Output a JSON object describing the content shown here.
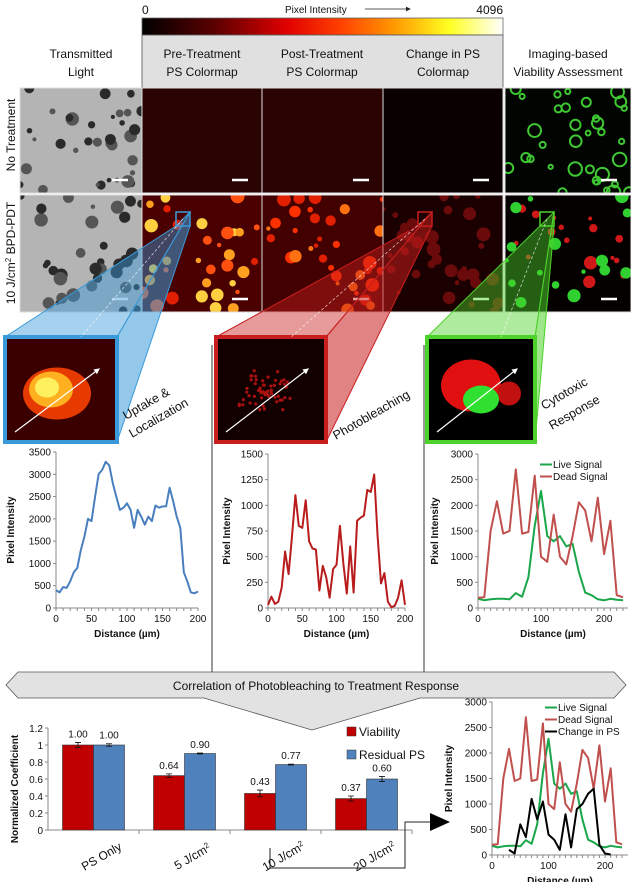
{
  "colorbar": {
    "min_label": "0",
    "max_label": "4096",
    "title": "Pixel Intensity",
    "colors": [
      "#000000",
      "#5a0000",
      "#e00000",
      "#ff4000",
      "#ff9900",
      "#ffff20",
      "#ffffff"
    ]
  },
  "columns": {
    "transmitted": [
      "Transmitted",
      "Light"
    ],
    "pre": [
      "Pre-Treatment",
      "PS Colormap"
    ],
    "post": [
      "Post-Treatment",
      "PS Colormap"
    ],
    "change": [
      "Change in PS",
      "Colormap"
    ],
    "viability": [
      "Imaging-based",
      "Viability Assessment"
    ]
  },
  "rows": {
    "no_treatment": "No Treatment",
    "treated_prefix": "10 J/cm",
    "treated_sup": "2",
    "treated_suffix": " BPD-PDT"
  },
  "insets": {
    "uptake": [
      "Uptake &",
      "Localization"
    ],
    "photobleaching": "Photobleaching",
    "cytotoxic": [
      "Cytotoxic",
      "Response"
    ],
    "colors": {
      "uptake": "#3a9ad9",
      "photobleaching": "#c81e1e",
      "cytotoxic": "#4cd22a"
    }
  },
  "banner": "Correlation of Photobleaching to Treatment Response",
  "chart_data": [
    {
      "type": "line",
      "xlabel": "Distance (µm)",
      "ylabel": "Pixel Intensity",
      "xlim": [
        0,
        200
      ],
      "ylim": [
        0,
        3500
      ],
      "xticks": [
        "0",
        "50",
        "100",
        "150",
        "200"
      ],
      "yticks": [
        "0",
        "500",
        "1000",
        "1500",
        "2000",
        "2500",
        "3000",
        "3500"
      ],
      "series": [
        {
          "color": "#4a7fbf",
          "x_step": 5,
          "values": [
            400,
            350,
            470,
            450,
            600,
            800,
            900,
            1300,
            1600,
            2000,
            1950,
            2500,
            3000,
            3100,
            3280,
            3200,
            2800,
            2500,
            2200,
            2250,
            2350,
            2200,
            1800,
            2200,
            2050,
            1870,
            2050,
            1950,
            2300,
            2250,
            2280,
            2280,
            2700,
            2400,
            2050,
            1800,
            800,
            600,
            350,
            330,
            370
          ]
        }
      ]
    },
    {
      "type": "line",
      "xlabel": "Distance (µm)",
      "ylabel": "Pixel Intensity",
      "xlim": [
        0,
        200
      ],
      "ylim": [
        0,
        1500
      ],
      "xticks": [
        "0",
        "50",
        "100",
        "150",
        "200"
      ],
      "yticks": [
        "0",
        "250",
        "500",
        "750",
        "1000",
        "1250",
        "1500"
      ],
      "series": [
        {
          "color": "#b81c1c",
          "x_step": 5,
          "values": [
            30,
            110,
            40,
            60,
            200,
            550,
            330,
            700,
            1100,
            800,
            780,
            1050,
            650,
            580,
            570,
            170,
            410,
            300,
            100,
            380,
            420,
            800,
            430,
            140,
            600,
            150,
            850,
            880,
            900,
            1150,
            1130,
            1300,
            700,
            240,
            340,
            60,
            10,
            20,
            100,
            270,
            30
          ]
        }
      ]
    },
    {
      "type": "line",
      "xlabel": "Distance (µm)",
      "ylabel": "Pixel Intensity",
      "xlim": [
        0,
        230
      ],
      "ylim": [
        0,
        3000
      ],
      "xticks": [
        "0",
        "100",
        "200"
      ],
      "yticks": [
        "0",
        "500",
        "1000",
        "1500",
        "2000",
        "2500",
        "3000"
      ],
      "legend": "top-right",
      "series": [
        {
          "name": "Live Signal",
          "color": "#1aa64a",
          "x_step": 10,
          "values": [
            180,
            150,
            170,
            180,
            180,
            170,
            290,
            220,
            600,
            1600,
            2280,
            1400,
            1300,
            1400,
            1200,
            1250,
            700,
            300,
            250,
            170,
            150,
            180,
            160,
            150
          ]
        },
        {
          "name": "Dead Signal",
          "color": "#c0504d",
          "x_step": 10,
          "values": [
            200,
            210,
            1500,
            2080,
            1450,
            1500,
            2700,
            1450,
            1480,
            2580,
            1000,
            900,
            1820,
            1000,
            850,
            1400,
            2060,
            1900,
            1300,
            2150,
            1050,
            1700,
            250,
            210
          ]
        }
      ]
    },
    {
      "type": "bar",
      "ylabel": "Normalized Coefficient",
      "ylim": [
        0,
        1.2
      ],
      "yticks": [
        "0",
        "0.2",
        "0.4",
        "0.6",
        "0.8",
        "1",
        "1.2"
      ],
      "categories": [
        "PS Only",
        "5 J/cm",
        "10 J/cm",
        "20 J/cm"
      ],
      "category_sup": [
        "",
        "2",
        "2",
        "2"
      ],
      "legend": "top-right",
      "series": [
        {
          "name": "Viability",
          "color": "#c00000",
          "values": [
            1.0,
            0.64,
            0.43,
            0.37
          ],
          "labels": [
            "1.00",
            "0.64",
            "0.43",
            "0.37"
          ],
          "errors": [
            0.03,
            0.02,
            0.04,
            0.03
          ]
        },
        {
          "name": "Residual PS",
          "color": "#4f81bd",
          "values": [
            1.0,
            0.9,
            0.77,
            0.6
          ],
          "labels": [
            "1.00",
            "0.90",
            "0.77",
            "0.60"
          ],
          "errors": [
            0.015,
            0.005,
            0.005,
            0.03
          ]
        }
      ]
    },
    {
      "type": "line",
      "xlabel": "Distance (µm)",
      "ylabel": "Pixel Intensity",
      "xlim": [
        0,
        230
      ],
      "ylim": [
        0,
        3000
      ],
      "xticks": [
        "0",
        "100",
        "200"
      ],
      "yticks": [
        "0",
        "500",
        "1000",
        "1500",
        "2000",
        "2500",
        "3000"
      ],
      "legend": "top-right",
      "series": [
        {
          "name": "Live Signal",
          "color": "#1aa64a",
          "x_step": 10,
          "values": [
            180,
            150,
            170,
            180,
            180,
            170,
            290,
            220,
            600,
            1600,
            2280,
            1400,
            1300,
            1400,
            1200,
            1250,
            700,
            300,
            250,
            170,
            150,
            180,
            160,
            150
          ]
        },
        {
          "name": "Dead Signal",
          "color": "#c0504d",
          "x_step": 10,
          "values": [
            200,
            210,
            1500,
            2080,
            1450,
            1500,
            2700,
            1450,
            1480,
            2580,
            1000,
            900,
            1820,
            1000,
            850,
            1400,
            2060,
            1900,
            1300,
            2150,
            1050,
            1700,
            250,
            210
          ]
        },
        {
          "name": "Change in PS",
          "color": "#000000",
          "x_start": 30,
          "x_step": 10,
          "values": [
            100,
            30,
            600,
            350,
            1100,
            700,
            1050,
            400,
            300,
            100,
            800,
            150,
            900,
            1000,
            1200,
            1300,
            200,
            30,
            10
          ]
        }
      ]
    }
  ]
}
